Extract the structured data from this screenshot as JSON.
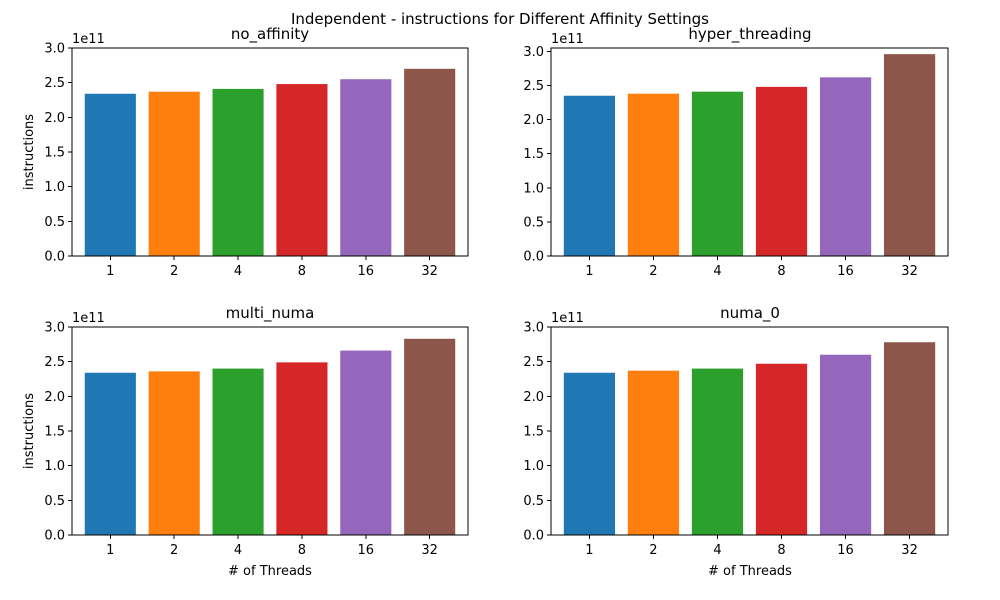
{
  "figure": {
    "suptitle": "Independent - instructions for Different Affinity Settings"
  },
  "chart_data": [
    {
      "type": "bar",
      "title": "no_affinity",
      "xlabel": "",
      "ylabel": "instructions",
      "y_offset_label": "1e11",
      "categories": [
        "1",
        "2",
        "4",
        "8",
        "16",
        "32"
      ],
      "values": [
        234000000000.0,
        237000000000.0,
        241000000000.0,
        248000000000.0,
        255000000000.0,
        270000000000.0
      ],
      "colors": [
        "#1f77b4",
        "#ff7f0e",
        "#2ca02c",
        "#d62728",
        "#9467bd",
        "#8c564b"
      ],
      "ylim": [
        0,
        300000000000.0
      ],
      "yticks": [
        0.0,
        0.5,
        1.0,
        1.5,
        2.0,
        2.5,
        3.0
      ],
      "ytick_labels": [
        "0.0",
        "0.5",
        "1.0",
        "1.5",
        "2.0",
        "2.5",
        "3.0"
      ]
    },
    {
      "type": "bar",
      "title": "hyper_threading",
      "xlabel": "",
      "ylabel": "",
      "y_offset_label": "1e11",
      "categories": [
        "1",
        "2",
        "4",
        "8",
        "16",
        "32"
      ],
      "values": [
        235000000000.0,
        238000000000.0,
        241000000000.0,
        248000000000.0,
        262000000000.0,
        296000000000.0
      ],
      "colors": [
        "#1f77b4",
        "#ff7f0e",
        "#2ca02c",
        "#d62728",
        "#9467bd",
        "#8c564b"
      ],
      "ylim": [
        0,
        305000000000.0
      ],
      "yticks": [
        0.0,
        0.5,
        1.0,
        1.5,
        2.0,
        2.5,
        3.0
      ],
      "ytick_labels": [
        "0.0",
        "0.5",
        "1.0",
        "1.5",
        "2.0",
        "2.5",
        "3.0"
      ]
    },
    {
      "type": "bar",
      "title": "multi_numa",
      "xlabel": "# of Threads",
      "ylabel": "instructions",
      "y_offset_label": "1e11",
      "categories": [
        "1",
        "2",
        "4",
        "8",
        "16",
        "32"
      ],
      "values": [
        234000000000.0,
        236000000000.0,
        240000000000.0,
        249000000000.0,
        266000000000.0,
        283000000000.0
      ],
      "colors": [
        "#1f77b4",
        "#ff7f0e",
        "#2ca02c",
        "#d62728",
        "#9467bd",
        "#8c564b"
      ],
      "ylim": [
        0,
        300000000000.0
      ],
      "yticks": [
        0.0,
        0.5,
        1.0,
        1.5,
        2.0,
        2.5,
        3.0
      ],
      "ytick_labels": [
        "0.0",
        "0.5",
        "1.0",
        "1.5",
        "2.0",
        "2.5",
        "3.0"
      ]
    },
    {
      "type": "bar",
      "title": "numa_0",
      "xlabel": "# of Threads",
      "ylabel": "",
      "y_offset_label": "1e11",
      "categories": [
        "1",
        "2",
        "4",
        "8",
        "16",
        "32"
      ],
      "values": [
        234000000000.0,
        237000000000.0,
        240000000000.0,
        247000000000.0,
        260000000000.0,
        278000000000.0
      ],
      "colors": [
        "#1f77b4",
        "#ff7f0e",
        "#2ca02c",
        "#d62728",
        "#9467bd",
        "#8c564b"
      ],
      "ylim": [
        0,
        300000000000.0
      ],
      "yticks": [
        0.0,
        0.5,
        1.0,
        1.5,
        2.0,
        2.5,
        3.0
      ],
      "ytick_labels": [
        "0.0",
        "0.5",
        "1.0",
        "1.5",
        "2.0",
        "2.5",
        "3.0"
      ]
    }
  ]
}
